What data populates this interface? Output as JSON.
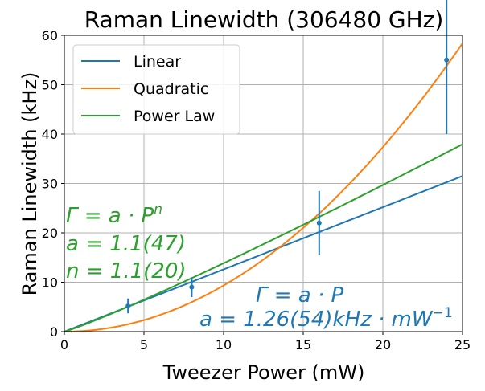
{
  "chart_data": {
    "type": "line",
    "title": "Raman Linewidth (306480 GHz)",
    "xlabel": "Tweezer Power (mW)",
    "ylabel": "Raman Linewidth (kHz)",
    "xlim": [
      0,
      25
    ],
    "ylim": [
      0,
      60
    ],
    "xticks": [
      0,
      5,
      10,
      15,
      20,
      25
    ],
    "yticks": [
      0,
      10,
      20,
      30,
      40,
      50,
      60
    ],
    "grid": true,
    "legend_position": "top-left",
    "data_points": {
      "x": [
        4,
        8,
        16,
        24
      ],
      "y": [
        5.2,
        9.0,
        22.0,
        55.0
      ],
      "yerr_low": [
        1.5,
        2.0,
        6.5,
        15.0
      ],
      "yerr_high": [
        1.5,
        2.0,
        6.5,
        15.0
      ],
      "color": "#1f77b4"
    },
    "series": [
      {
        "name": "Linear",
        "model": "linear",
        "a": 1.26,
        "color": "#1f77b4"
      },
      {
        "name": "Quadratic",
        "model": "quadratic",
        "a": 0.0934,
        "color": "#ff7f0e"
      },
      {
        "name": "Power Law",
        "model": "power",
        "a": 1.1,
        "n": 1.1,
        "color": "#2ca02c"
      }
    ],
    "annotations": {
      "power_law": {
        "line1_lhs": "Γ = a · P",
        "line1_exp": "n",
        "line2": "a = 1.1(47)",
        "line3": "n = 1.1(20)",
        "color": "#2ca02c"
      },
      "linear": {
        "line1": "Γ = a · P",
        "line2_main": "a = 1.26(54)kHz · mW",
        "line2_exp": "−1",
        "color": "#1f77b4"
      }
    }
  }
}
